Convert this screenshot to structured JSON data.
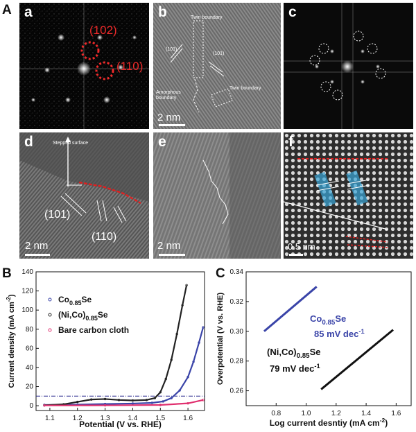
{
  "figure": {
    "section_letters": [
      "A",
      "B",
      "C"
    ],
    "panels": {
      "a": {
        "letter": "a",
        "spots": [
          "(102)",
          "(110)"
        ]
      },
      "b": {
        "letter": "b",
        "scale": "2 nm",
        "labels": {
          "twin_top": "Twin boundary",
          "planes_left": "(101)",
          "planes_right": "(101)",
          "amorphous": "Amorphous\nboundary",
          "twin_right": "Twin boundary"
        }
      },
      "c": {
        "letter": "c"
      },
      "d": {
        "letter": "d",
        "scale": "2 nm",
        "labels": {
          "stepped": "Stepped surface",
          "p101": "(101)",
          "p110": "(110)"
        }
      },
      "e": {
        "letter": "e",
        "scale": "2 nm"
      },
      "f": {
        "letter": "f",
        "scale": "0.5 nm"
      }
    }
  },
  "chart_data": [
    {
      "type": "line",
      "panel": "B",
      "xlabel": "Potential (V vs. RHE)",
      "ylabel": "Current density (mA cm",
      "ylabel_sup": "-2",
      "ylabel_tail": ")",
      "xlim": [
        1.05,
        1.66
      ],
      "ylim": [
        -5,
        140
      ],
      "xticks": [
        "1.1",
        "1.2",
        "1.3",
        "1.4",
        "1.5",
        "1.6"
      ],
      "yticks": [
        "0",
        "20",
        "40",
        "60",
        "80",
        "100",
        "120",
        "140"
      ],
      "reference_line_y": 10,
      "legend": [
        {
          "base": "Co",
          "sub": "0.85",
          "tail": "Se",
          "color": "#3a44a8"
        },
        {
          "base": "(Ni,Co)",
          "sub": "0.85",
          "tail": "Se",
          "color": "#222222"
        },
        {
          "base": "Bare carbon cloth",
          "sub": "",
          "tail": "",
          "color": "#e0306f"
        }
      ],
      "series": [
        {
          "color": "#3a44a8",
          "x": [
            1.08,
            1.2,
            1.3,
            1.4,
            1.47,
            1.51,
            1.54,
            1.57,
            1.6,
            1.62,
            1.64,
            1.655
          ],
          "y": [
            0.8,
            1.2,
            1.8,
            2.3,
            3.0,
            4.5,
            8.0,
            16.0,
            30.0,
            46.0,
            66.0,
            82.0
          ]
        },
        {
          "color": "#222222",
          "x": [
            1.08,
            1.15,
            1.2,
            1.25,
            1.3,
            1.35,
            1.4,
            1.45,
            1.48,
            1.5,
            1.52,
            1.54,
            1.56,
            1.58,
            1.595
          ],
          "y": [
            0.5,
            1.5,
            4.0,
            6.5,
            7.0,
            6.0,
            5.5,
            6.0,
            8.0,
            14.0,
            28.0,
            48.0,
            75.0,
            105.0,
            126.0
          ]
        },
        {
          "color": "#e0306f",
          "x": [
            1.08,
            1.3,
            1.5,
            1.6,
            1.655
          ],
          "y": [
            0.3,
            0.4,
            0.8,
            2.5,
            6.0
          ]
        }
      ]
    },
    {
      "type": "line",
      "panel": "C",
      "xlabel": "Log current desntiy (mA cm",
      "xlabel_sup": "-2",
      "xlabel_tail": ")",
      "ylabel": "Overpotential (V vs. RHE)",
      "xlim": [
        0.6,
        1.7
      ],
      "ylim": [
        0.25,
        0.34
      ],
      "xticks": [
        "0.8",
        "1.0",
        "1.2",
        "1.4",
        "1.6"
      ],
      "yticks": [
        "0.26",
        "0.28",
        "0.30",
        "0.32",
        "0.34"
      ],
      "annotations": [
        {
          "base": "Co",
          "sub": "0.85",
          "tail": "Se",
          "rate": "85 mV dec",
          "rate_sup": "-1",
          "color": "#3a44a8"
        },
        {
          "base": "(Ni,Co)",
          "sub": "0.85",
          "tail": "Se",
          "rate": "79 mV dec",
          "rate_sup": "-1",
          "color": "#111111"
        }
      ],
      "series": [
        {
          "color": "#3a44a8",
          "x": [
            0.72,
            1.07
          ],
          "y": [
            0.3,
            0.33
          ]
        },
        {
          "color": "#111111",
          "x": [
            1.1,
            1.58
          ],
          "y": [
            0.261,
            0.301
          ]
        }
      ]
    }
  ]
}
